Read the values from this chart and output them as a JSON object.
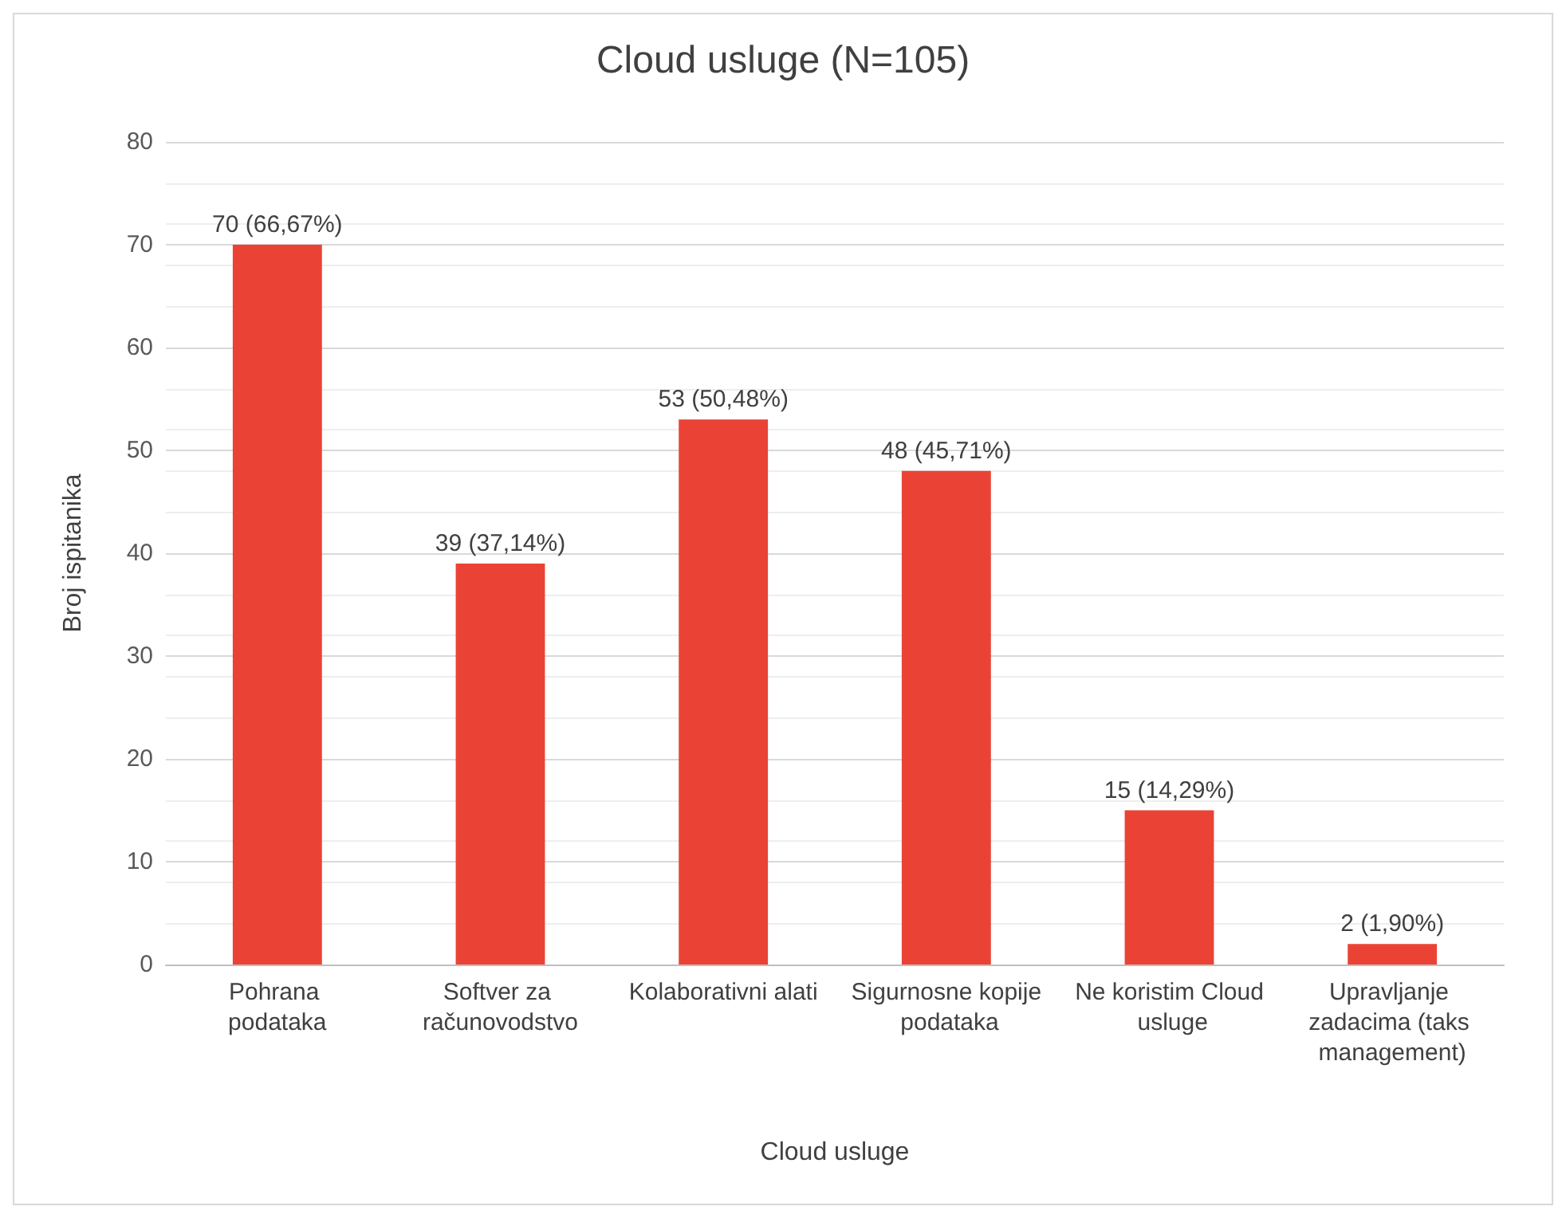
{
  "chart_data": {
    "type": "bar",
    "title": "Cloud usluge (N=105)",
    "xlabel": "Cloud usluge",
    "ylabel": "Broj ispitanika",
    "categories": [
      "Pohrana podataka",
      "Softver za računovodstvo",
      "Kolaborativni alati",
      "Sigurnosne kopije podataka",
      "Ne koristim Cloud usluge",
      "Upravljanje zadacima (taks management)"
    ],
    "values": [
      70,
      39,
      53,
      48,
      15,
      2
    ],
    "value_labels": [
      "70 (66,67%)",
      "39 (37,14%)",
      "53 (50,48%)",
      "48 (45,71%)",
      "15 (14,29%)",
      "2 (1,90%)"
    ],
    "color": "#ea4335",
    "ylim": [
      0,
      80
    ],
    "yticks": [
      0,
      10,
      20,
      30,
      40,
      50,
      60,
      70,
      80
    ],
    "grid": "y"
  }
}
